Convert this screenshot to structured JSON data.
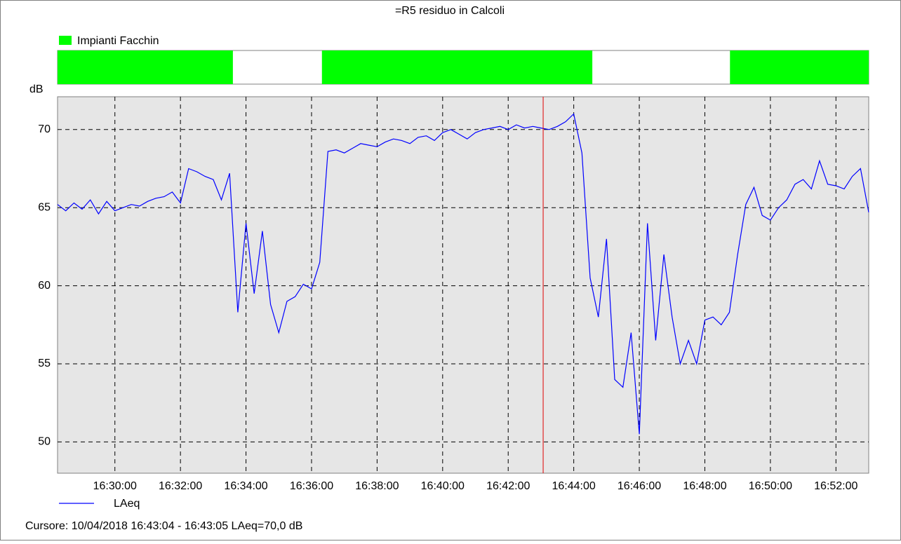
{
  "chart_data": {
    "type": "line",
    "title": "=R5 residuo in Calcoli",
    "band_legend": "Impianti Facchin",
    "band_color": "#00ff00",
    "bands": [
      [
        "16:28:15",
        "16:33:36"
      ],
      [
        "16:36:19",
        "16:44:34"
      ],
      [
        "16:48:46",
        "16:53:00"
      ]
    ],
    "y_label": "dB",
    "xlim": [
      "16:28:15",
      "16:53:00"
    ],
    "xticks": [
      "16:30:00",
      "16:32:00",
      "16:34:00",
      "16:36:00",
      "16:38:00",
      "16:40:00",
      "16:42:00",
      "16:44:00",
      "16:46:00",
      "16:48:00",
      "16:50:00",
      "16:52:00"
    ],
    "ylim": [
      48,
      72.1
    ],
    "yticks": [
      50,
      55,
      60,
      65,
      70
    ],
    "grid": true,
    "cursor_x": "16:43:04",
    "cursor_color": "#e00000",
    "cursor_text": "Cursore: 10/04/2018 16:43:04 - 16:43:05  LAeq=70,0 dB",
    "x": [
      "16:28:15",
      "16:28:30",
      "16:28:45",
      "16:29:00",
      "16:29:15",
      "16:29:30",
      "16:29:45",
      "16:30:00",
      "16:30:15",
      "16:30:30",
      "16:30:45",
      "16:31:00",
      "16:31:15",
      "16:31:30",
      "16:31:45",
      "16:32:00",
      "16:32:15",
      "16:32:30",
      "16:32:45",
      "16:33:00",
      "16:33:15",
      "16:33:30",
      "16:33:45",
      "16:34:00",
      "16:34:15",
      "16:34:30",
      "16:34:45",
      "16:35:00",
      "16:35:15",
      "16:35:30",
      "16:35:45",
      "16:36:00",
      "16:36:15",
      "16:36:30",
      "16:36:45",
      "16:37:00",
      "16:37:15",
      "16:37:30",
      "16:37:45",
      "16:38:00",
      "16:38:15",
      "16:38:30",
      "16:38:45",
      "16:39:00",
      "16:39:15",
      "16:39:30",
      "16:39:45",
      "16:40:00",
      "16:40:15",
      "16:40:30",
      "16:40:45",
      "16:41:00",
      "16:41:15",
      "16:41:30",
      "16:41:45",
      "16:42:00",
      "16:42:15",
      "16:42:30",
      "16:42:45",
      "16:43:00",
      "16:43:15",
      "16:43:30",
      "16:43:45",
      "16:44:00",
      "16:44:15",
      "16:44:30",
      "16:44:45",
      "16:45:00",
      "16:45:15",
      "16:45:30",
      "16:45:45",
      "16:46:00",
      "16:46:15",
      "16:46:30",
      "16:46:45",
      "16:47:00",
      "16:47:15",
      "16:47:30",
      "16:47:45",
      "16:48:00",
      "16:48:15",
      "16:48:30",
      "16:48:45",
      "16:49:00",
      "16:49:15",
      "16:49:30",
      "16:49:45",
      "16:50:00",
      "16:50:15",
      "16:50:30",
      "16:50:45",
      "16:51:00",
      "16:51:15",
      "16:51:30",
      "16:51:45",
      "16:52:00",
      "16:52:15",
      "16:52:30",
      "16:52:45",
      "16:53:00"
    ],
    "series": [
      {
        "name": "LAeq",
        "color": "#0000ff",
        "values": [
          65.2,
          64.8,
          65.3,
          64.9,
          65.5,
          64.6,
          65.4,
          64.8,
          65.0,
          65.2,
          65.1,
          65.4,
          65.6,
          65.7,
          66.0,
          65.3,
          67.5,
          67.3,
          67.0,
          66.8,
          65.5,
          67.2,
          58.3,
          64.0,
          59.5,
          63.5,
          58.8,
          57.0,
          59.0,
          59.3,
          60.1,
          59.8,
          61.5,
          68.6,
          68.7,
          68.5,
          68.8,
          69.1,
          69.0,
          68.9,
          69.2,
          69.4,
          69.3,
          69.1,
          69.5,
          69.6,
          69.3,
          69.8,
          70.0,
          69.7,
          69.4,
          69.8,
          70.0,
          70.1,
          70.2,
          70.0,
          70.3,
          70.1,
          70.2,
          70.1,
          70.0,
          70.2,
          70.5,
          71.0,
          68.5,
          60.5,
          58.0,
          63.0,
          54.0,
          53.5,
          57.0,
          50.5,
          64.0,
          56.5,
          62.0,
          58.0,
          55.0,
          56.5,
          55.0,
          57.8,
          58.0,
          57.5,
          58.3,
          62.0,
          65.2,
          66.3,
          64.5,
          64.2,
          65.0,
          65.5,
          66.5,
          66.8,
          66.2,
          68.0,
          66.5,
          66.4,
          66.2,
          67.0,
          67.5,
          64.7
        ]
      }
    ]
  }
}
